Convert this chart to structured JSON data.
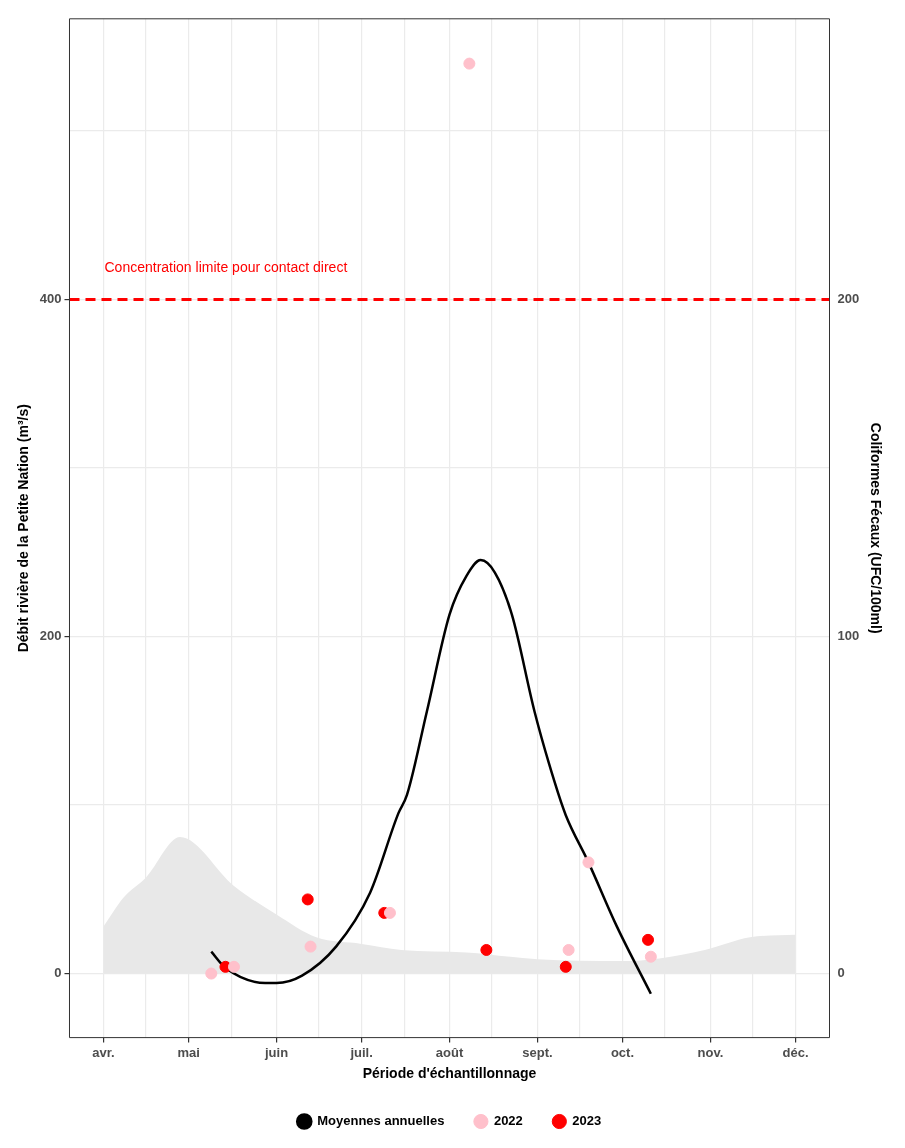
{
  "chart_data": {
    "type": "scatter",
    "xlabel": "Période d'échantillonnage",
    "ylabel": "Débit rivière de la Petite Nation (m³/s)",
    "y2label": "Coliformes Fécaux (UFC/100ml)",
    "xlim": [
      "--03-20",
      "--12-13"
    ],
    "xticks": [
      {
        "value": "--04-01",
        "label": "avr."
      },
      {
        "value": "--04-16",
        "label": null
      },
      {
        "value": "--05-01",
        "label": "mai"
      },
      {
        "value": "--05-16",
        "label": null
      },
      {
        "value": "--06-01",
        "label": "juin"
      },
      {
        "value": "--06-16",
        "label": null
      },
      {
        "value": "--07-01",
        "label": "juil."
      },
      {
        "value": "--07-16",
        "label": null
      },
      {
        "value": "--08-01",
        "label": "août"
      },
      {
        "value": "--08-16",
        "label": null
      },
      {
        "value": "--09-01",
        "label": "sept."
      },
      {
        "value": "--09-16",
        "label": null
      },
      {
        "value": "--10-01",
        "label": "oct."
      },
      {
        "value": "--10-16",
        "label": null
      },
      {
        "value": "--11-01",
        "label": "nov."
      },
      {
        "value": "--11-16",
        "label": null
      },
      {
        "value": "--12-01",
        "label": "déc."
      }
    ],
    "ylim": [
      -38,
      566.6
    ],
    "yticks": [
      0,
      {
        "value": 100,
        "label": null
      },
      200,
      {
        "value": 300,
        "label": null
      },
      400,
      {
        "value": 500,
        "label": null
      }
    ],
    "y2lim": [
      -19,
      283.3
    ],
    "y2ticks": [
      0,
      100,
      200
    ],
    "grid": true,
    "legend": "bottom",
    "ref_lines": [
      {
        "axis": "y2",
        "value": 200,
        "label": "Concentration limite pour contact direct",
        "color": "#ff0000",
        "line_style": "dashed"
      }
    ],
    "series": [
      {
        "type": "area",
        "color": "#e8e8e8",
        "axis": "y",
        "x": [
          "--04-01",
          "--04-08",
          "--04-16",
          "--04-28",
          "--05-17",
          "--06-01",
          "--06-15",
          "--07-01",
          "--07-15",
          "--08-07",
          "--09-01",
          "--10-01",
          "--10-14",
          "--10-30",
          "--11-15",
          "--12-01"
        ],
        "values": [
          28,
          45,
          57,
          81,
          52,
          35,
          21.5,
          17.6,
          14,
          12.5,
          8.5,
          7.4,
          9,
          14,
          21.5,
          23
        ]
      },
      {
        "type": "line",
        "name": "Moyennes annuelles",
        "color": "#000000",
        "axis": "y2",
        "marker": "none",
        "x": [
          "--05-09",
          "--05-14",
          "--05-28",
          "--06-01",
          "--06-10",
          "--06-22",
          "--07-04",
          "--07-14",
          "--07-17",
          "--07-24",
          "--08-01",
          "--08-07",
          "--08-12",
          "--08-17",
          "--08-23",
          "--08-31",
          "--09-07",
          "--09-11",
          "--09-19",
          "--09-29",
          "--10-11"
        ],
        "values": [
          6.5,
          1.7,
          -2.8,
          -2.8,
          -0.6,
          8,
          24,
          47.6,
          53,
          77.7,
          106.5,
          118,
          122.7,
          119,
          106.5,
          77.7,
          57,
          47,
          33,
          14,
          -6
        ]
      },
      {
        "type": "scatter",
        "name": "2022",
        "color": "#ffc0cb",
        "axis": "y2",
        "marker": "circle",
        "x": [
          "--05-09",
          "--05-17",
          "--06-13",
          "--07-11",
          "--08-08",
          "--09-12",
          "--09-19",
          "--10-11"
        ],
        "values": [
          0,
          2,
          8,
          18,
          270,
          7,
          33,
          5
        ]
      },
      {
        "type": "scatter",
        "name": "2023",
        "color": "#ff0000",
        "axis": "y2",
        "marker": "circle",
        "x": [
          "--05-14",
          "--06-12",
          "--07-09",
          "--08-14",
          "--09-11",
          "--10-10"
        ],
        "values": [
          2,
          22,
          18,
          7,
          2,
          10
        ]
      }
    ]
  }
}
